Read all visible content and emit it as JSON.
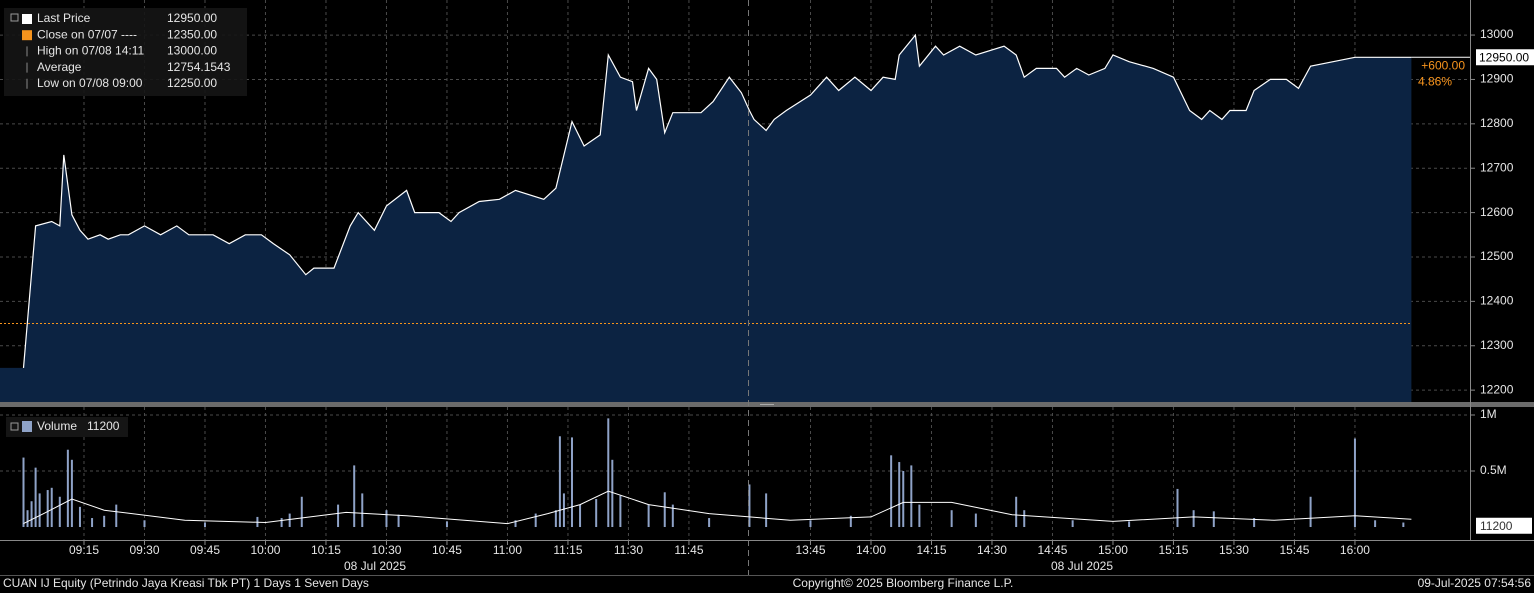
{
  "chart_data": [
    {
      "type": "area",
      "legend": [
        {
          "label": "Last Price",
          "value": 12950,
          "value_label": "12950.00",
          "color": "#ffffff"
        },
        {
          "label": "Close on 07/07 ----",
          "value": 12350,
          "value_label": "12350.00",
          "color": "#f7941d"
        },
        {
          "label": "High on 07/08 14:11",
          "value": 13000,
          "value_label": "13000.00"
        },
        {
          "label": "Average",
          "value": 12754.1543,
          "value_label": "12754.1543"
        },
        {
          "label": "Low on 07/08 09:00",
          "value": 12250,
          "value_label": "12250.00"
        }
      ],
      "change": {
        "value": 600,
        "label": "+600.00"
      },
      "change_pct": {
        "value": 4.86,
        "label": "4.86%"
      },
      "x": [
        "09:00",
        "09:03",
        "09:07",
        "09:09",
        "09:10",
        "09:12",
        "09:14",
        "09:16",
        "09:19",
        "09:21",
        "09:24",
        "09:26",
        "09:30",
        "09:34",
        "09:38",
        "09:41",
        "09:47",
        "09:51",
        "09:55",
        "09:59",
        "10:02",
        "10:06",
        "10:10",
        "10:12",
        "10:17",
        "10:21",
        "10:23",
        "10:27",
        "10:30",
        "10:35",
        "10:37",
        "10:43",
        "10:46",
        "10:48",
        "10:53",
        "10:58",
        "11:02",
        "11:09",
        "11:12",
        "11:16",
        "11:19",
        "11:23",
        "11:25",
        "11:28",
        "11:31",
        "11:32",
        "11:35",
        "11:37",
        "11:39",
        "11:41",
        "11:48",
        "11:51",
        "11:55",
        "11:58",
        "12:00",
        "13:31",
        "13:34",
        "13:36",
        "13:39",
        "13:45",
        "13:49",
        "13:52",
        "13:56",
        "14:00",
        "14:03",
        "14:06",
        "14:07",
        "14:11",
        "14:12",
        "14:16",
        "14:18",
        "14:22",
        "14:26",
        "14:33",
        "14:36",
        "14:38",
        "14:41",
        "14:46",
        "14:48",
        "14:51",
        "14:54",
        "14:58",
        "15:00",
        "15:04",
        "15:10",
        "15:15",
        "15:19",
        "15:22",
        "15:24",
        "15:27",
        "15:29",
        "15:33",
        "15:35",
        "15:39",
        "15:43",
        "15:46",
        "15:49",
        "16:00",
        "16:14"
      ],
      "series": [
        {
          "name": "Last Price",
          "color": "#ffffff",
          "fill": "#0c2342",
          "values": [
            12250,
            12570,
            12580,
            12570,
            12730,
            12595,
            12560,
            12540,
            12550,
            12540,
            12550,
            12550,
            12570,
            12550,
            12570,
            12550,
            12550,
            12530,
            12550,
            12550,
            12530,
            12505,
            12460,
            12475,
            12475,
            12570,
            12600,
            12560,
            12615,
            12650,
            12600,
            12600,
            12580,
            12600,
            12625,
            12630,
            12650,
            12630,
            12655,
            12805,
            12750,
            12775,
            12955,
            12905,
            12895,
            12830,
            12925,
            12900,
            12780,
            12825,
            12825,
            12850,
            12905,
            12870,
            12830,
            12810,
            12785,
            12810,
            12830,
            12865,
            12905,
            12875,
            12905,
            12875,
            12905,
            12900,
            12955,
            13000,
            12930,
            12975,
            12955,
            12975,
            12955,
            12975,
            12955,
            12905,
            12925,
            12925,
            12905,
            12925,
            12910,
            12925,
            12955,
            12940,
            12925,
            12905,
            12830,
            12810,
            12830,
            12810,
            12830,
            12830,
            12875,
            12900,
            12900,
            12880,
            12930,
            12950,
            12950
          ]
        }
      ],
      "ylim": [
        12171,
        13079
      ],
      "yticks": [
        12200,
        12300,
        12400,
        12500,
        12600,
        12700,
        12800,
        12900,
        13000
      ],
      "grid": true
    },
    {
      "type": "bar",
      "last_value": 11200,
      "x": [
        "09:00",
        "09:01",
        "09:02",
        "09:03",
        "09:04",
        "09:06",
        "09:07",
        "09:09",
        "09:11",
        "09:12",
        "09:14",
        "09:17",
        "09:20",
        "09:23",
        "09:30",
        "09:45",
        "09:58",
        "10:04",
        "10:06",
        "10:09",
        "10:18",
        "10:22",
        "10:24",
        "10:30",
        "10:33",
        "10:45",
        "11:02",
        "11:07",
        "11:12",
        "11:13",
        "11:14",
        "11:16",
        "11:18",
        "11:22",
        "11:25",
        "11:26",
        "11:28",
        "11:35",
        "11:39",
        "11:41",
        "11:50",
        "12:00",
        "13:34",
        "13:45",
        "13:55",
        "14:05",
        "14:07",
        "14:08",
        "14:10",
        "14:12",
        "14:20",
        "14:26",
        "14:36",
        "14:38",
        "14:50",
        "15:04",
        "15:16",
        "15:20",
        "15:25",
        "15:35",
        "15:49",
        "16:00",
        "16:05",
        "16:12"
      ],
      "series": [
        {
          "name": "Volume",
          "color": "#8fa3c8",
          "values": [
            620000,
            150000,
            230000,
            530000,
            300000,
            330000,
            350000,
            270000,
            690000,
            600000,
            180000,
            80000,
            100000,
            200000,
            60000,
            40000,
            90000,
            80000,
            120000,
            270000,
            200000,
            550000,
            300000,
            150000,
            110000,
            50000,
            60000,
            120000,
            150000,
            810000,
            300000,
            800000,
            200000,
            250000,
            970000,
            600000,
            280000,
            200000,
            310000,
            200000,
            80000,
            380000,
            300000,
            60000,
            100000,
            640000,
            580000,
            500000,
            550000,
            200000,
            150000,
            120000,
            270000,
            150000,
            60000,
            50000,
            340000,
            150000,
            140000,
            80000,
            270000,
            790000,
            60000,
            40000
          ]
        },
        {
          "color": "#ffffff",
          "x": [
            "09:00",
            "09:05",
            "09:12",
            "09:20",
            "09:40",
            "10:00",
            "10:20",
            "10:35",
            "11:00",
            "11:10",
            "11:18",
            "11:25",
            "11:35",
            "11:50",
            "12:00",
            "13:40",
            "14:00",
            "14:08",
            "14:20",
            "14:35",
            "15:00",
            "15:20",
            "15:40",
            "16:00",
            "16:14"
          ],
          "values": [
            30000,
            120000,
            250000,
            150000,
            60000,
            40000,
            130000,
            100000,
            30000,
            120000,
            200000,
            320000,
            200000,
            120000,
            90000,
            60000,
            90000,
            220000,
            220000,
            110000,
            50000,
            90000,
            60000,
            100000,
            70000
          ]
        }
      ],
      "ylim": [
        -116000,
        1062500
      ],
      "yticks": [
        {
          "value": 500000,
          "label": "0.5M"
        },
        {
          "value": 1000000,
          "label": "1M"
        }
      ],
      "xticks": [
        "09:15",
        "09:30",
        "09:45",
        "10:00",
        "10:15",
        "10:30",
        "10:45",
        "11:00",
        "11:15",
        "11:30",
        "11:45",
        "13:45",
        "14:00",
        "14:15",
        "14:30",
        "14:45",
        "15:00",
        "15:15",
        "15:30",
        "15:45",
        "16:00"
      ],
      "date_labels": [
        "08 Jul 2025",
        "08 Jul 2025"
      ],
      "grid": true
    }
  ],
  "footer": {
    "security": "CUAN IJ Equity (Petrindo Jaya Kreasi Tbk PT) 1 Days 1 Seven Days",
    "copyright": "Copyright© 2025 Bloomberg Finance L.P.",
    "timestamp": "09-Jul-2025 07:54:56"
  }
}
